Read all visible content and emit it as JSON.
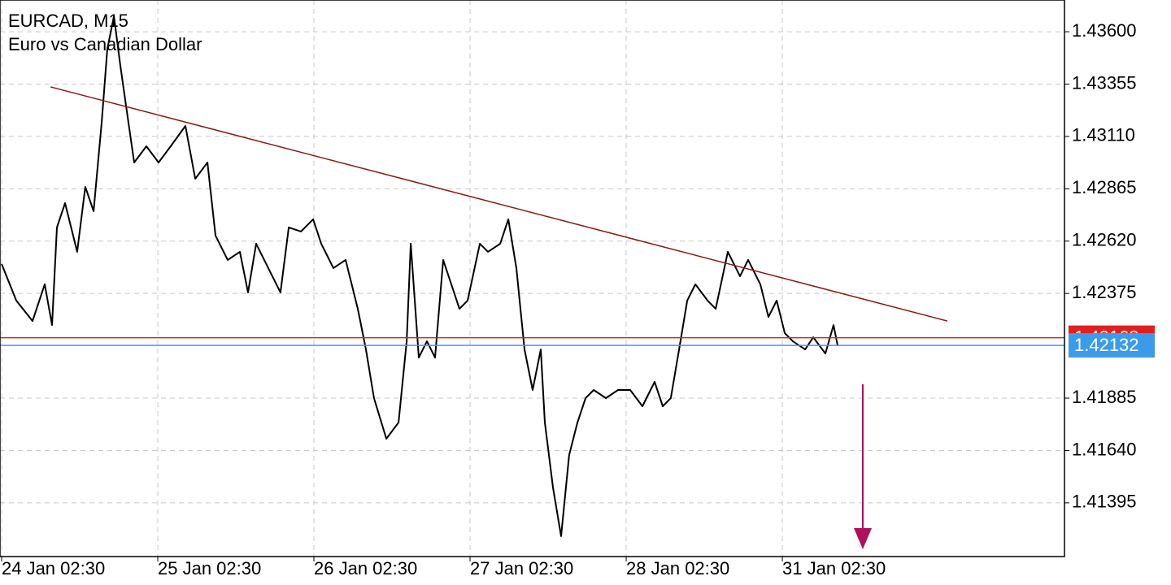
{
  "chart_data": {
    "type": "line",
    "title": "EURCAD, M15",
    "subtitle": "Euro vs Canadian Dollar",
    "color": "#000000",
    "x": [
      0,
      0.094,
      0.198,
      0.276,
      0.323,
      0.354,
      0.406,
      0.484,
      0.536,
      0.589,
      0.641,
      0.677,
      0.719,
      0.76,
      0.797,
      0.849,
      0.927,
      1.005,
      1.083,
      1.177,
      1.24,
      1.318,
      1.37,
      1.448,
      1.526,
      1.578,
      1.63,
      1.708,
      1.786,
      1.839,
      1.917,
      1.995,
      2.047,
      2.125,
      2.203,
      2.281,
      2.333,
      2.385,
      2.464,
      2.542,
      2.594,
      2.62,
      2.672,
      2.724,
      2.776,
      2.828,
      2.88,
      2.932,
      2.984,
      3.063,
      3.115,
      3.193,
      3.245,
      3.297,
      3.349,
      3.401,
      3.453,
      3.479,
      3.531,
      3.583,
      3.635,
      3.688,
      3.74,
      3.792,
      3.87,
      3.948,
      4.026,
      4.104,
      4.182,
      4.234,
      4.286,
      4.339,
      4.391,
      4.443,
      4.521,
      4.573,
      4.651,
      4.729,
      4.781,
      4.859,
      4.911,
      4.964,
      5.016,
      5.068,
      5.146,
      5.198,
      5.276,
      5.328,
      5.354
    ],
    "values": [
      1.42513,
      1.42342,
      1.42246,
      1.42418,
      1.42227,
      1.42684,
      1.42798,
      1.4257,
      1.42874,
      1.4276,
      1.43178,
      1.4352,
      1.43673,
      1.43444,
      1.43254,
      1.42988,
      1.43064,
      1.42988,
      1.43064,
      1.43159,
      1.42912,
      1.42988,
      1.42646,
      1.42532,
      1.4257,
      1.4238,
      1.42608,
      1.42494,
      1.4238,
      1.42684,
      1.42665,
      1.42722,
      1.42608,
      1.42494,
      1.42532,
      1.42303,
      1.42113,
      1.41885,
      1.41695,
      1.41771,
      1.42151,
      1.42608,
      1.42075,
      1.42151,
      1.42075,
      1.42532,
      1.42418,
      1.42303,
      1.42342,
      1.42608,
      1.4257,
      1.42608,
      1.42722,
      1.42494,
      1.42113,
      1.41923,
      1.42113,
      1.41771,
      1.41467,
      1.41239,
      1.41619,
      1.41771,
      1.41885,
      1.41923,
      1.41885,
      1.41923,
      1.41923,
      1.41847,
      1.41961,
      1.41847,
      1.41885,
      1.42113,
      1.42342,
      1.42418,
      1.42342,
      1.42303,
      1.4257,
      1.42456,
      1.42532,
      1.42418,
      1.42265,
      1.42342,
      1.42189,
      1.42151,
      1.42113,
      1.4217,
      1.42094,
      1.42227,
      1.42132
    ],
    "xlim": [
      -0.0104,
      6.807
    ],
    "xticks": [
      {
        "value": 0,
        "label": "24 Jan 02:30"
      },
      {
        "value": 1,
        "label": "25 Jan 02:30"
      },
      {
        "value": 2,
        "label": "26 Jan 02:30"
      },
      {
        "value": 3,
        "label": "27 Jan 02:30"
      },
      {
        "value": 4,
        "label": "28 Jan 02:30"
      },
      {
        "value": 5,
        "label": "31 Jan 02:30"
      }
    ],
    "ylim": [
      1.411435,
      1.437486
    ],
    "yticks": [
      {
        "value": 1.436,
        "label": "1.43600"
      },
      1.43355,
      {
        "value": 1.4311,
        "label": "1.43110"
      },
      1.42865,
      {
        "value": 1.4262,
        "label": "1.42620"
      },
      1.42375,
      1.41885,
      {
        "value": 1.4164,
        "label": "1.41640"
      },
      1.41395
    ],
    "grid": true,
    "trendline": {
      "x": [
        0.313,
        6.057
      ],
      "values": [
        1.43342,
        1.42246
      ],
      "color": "#8b1a1a"
    },
    "bid_line": {
      "value": 1.42168,
      "color": "#e02020"
    },
    "ask_line": {
      "value": 1.42132,
      "color": "#3c9be8"
    }
  }
}
